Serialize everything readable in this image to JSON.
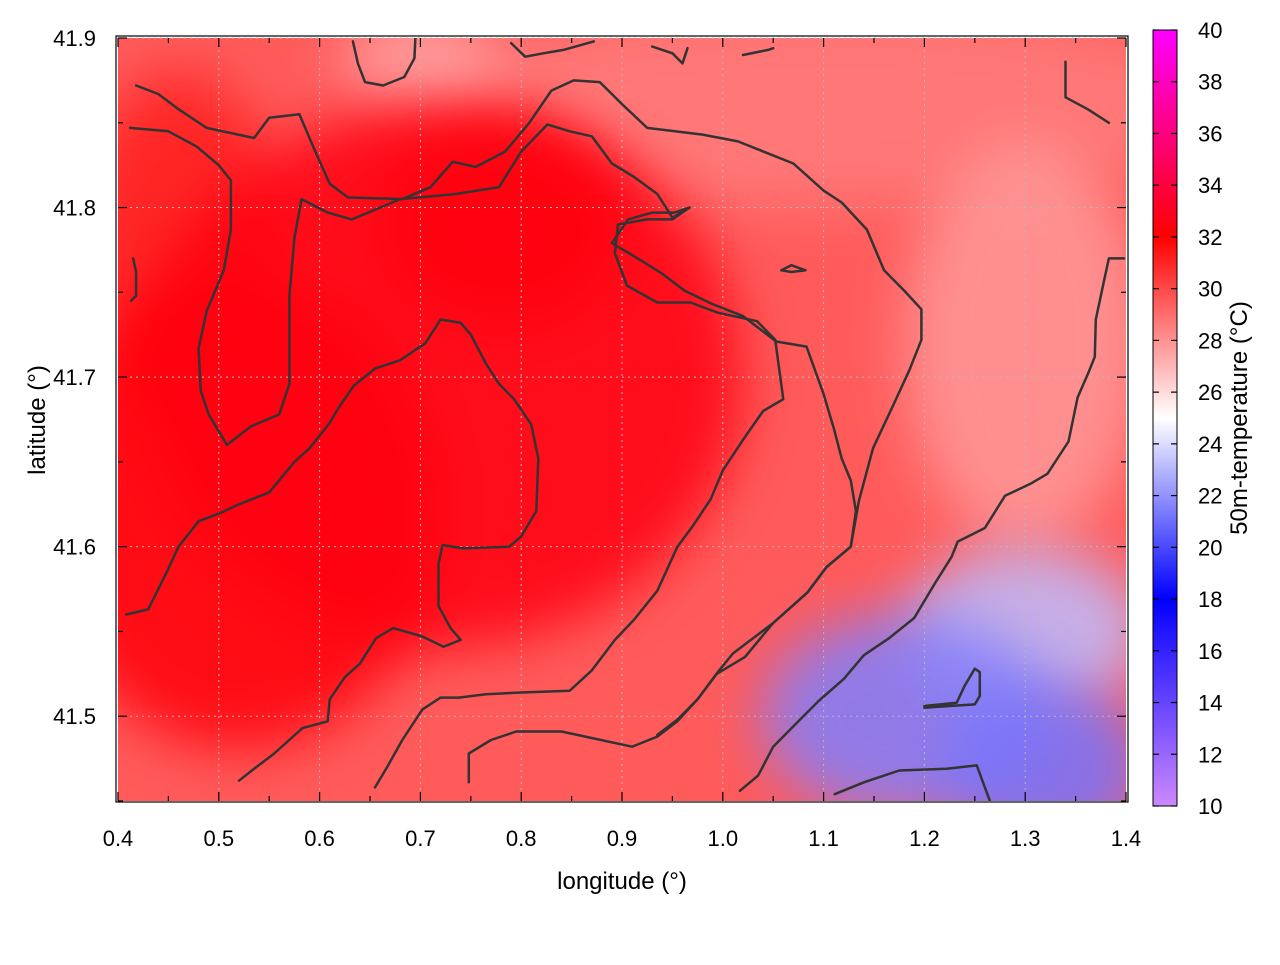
{
  "chart_data": {
    "type": "heatmap",
    "title": "",
    "xlabel": "longitude (°)",
    "ylabel": "latitude (°)",
    "colorbar_label": "50m-temperature (°C)",
    "xlim": [
      0.4,
      1.4
    ],
    "ylim": [
      41.45,
      41.9
    ],
    "x_ticks": [
      "0.4",
      "0.5",
      "0.6",
      "0.7",
      "0.8",
      "0.9",
      "1.0",
      "1.1",
      "1.2",
      "1.3",
      "1.4"
    ],
    "y_ticks": [
      "41.5",
      "41.6",
      "41.7",
      "41.8",
      "41.9"
    ],
    "colorbar_range": [
      10,
      40
    ],
    "colorbar_ticks": [
      "10",
      "12",
      "14",
      "16",
      "18",
      "20",
      "22",
      "24",
      "26",
      "28",
      "30",
      "32",
      "34",
      "36",
      "38",
      "40"
    ],
    "colormap": [
      {
        "value": 10,
        "color": "#cc88ff"
      },
      {
        "value": 18,
        "color": "#0000ff"
      },
      {
        "value": 25,
        "color": "#ffffff"
      },
      {
        "value": 32,
        "color": "#ff0000"
      },
      {
        "value": 40,
        "color": "#ff00ff"
      }
    ],
    "grid": true,
    "contour_color": "#333333",
    "contours": [
      [
        [
          0.418,
          41.872
        ],
        [
          0.44,
          41.867
        ],
        [
          0.46,
          41.858
        ],
        [
          0.488,
          41.847
        ],
        [
          0.535,
          41.841
        ],
        [
          0.55,
          41.853
        ],
        [
          0.58,
          41.855
        ],
        [
          0.595,
          41.834
        ],
        [
          0.61,
          41.814
        ],
        [
          0.628,
          41.806
        ],
        [
          0.682,
          41.805
        ],
        [
          0.71,
          41.812
        ],
        [
          0.732,
          41.827
        ],
        [
          0.755,
          41.824
        ],
        [
          0.784,
          41.833
        ],
        [
          0.808,
          41.85
        ],
        [
          0.83,
          41.869
        ],
        [
          0.852,
          41.875
        ],
        [
          0.878,
          41.874
        ],
        [
          0.9,
          41.861
        ],
        [
          0.925,
          41.847
        ],
        [
          0.98,
          41.843
        ],
        [
          1.015,
          41.839
        ],
        [
          1.07,
          41.826
        ],
        [
          1.1,
          41.81
        ],
        [
          1.118,
          41.803
        ],
        [
          1.143,
          41.787
        ],
        [
          1.16,
          41.763
        ],
        [
          1.18,
          41.751
        ],
        [
          1.197,
          41.74
        ],
        [
          1.197,
          41.722
        ],
        [
          1.185,
          41.704
        ],
        [
          1.168,
          41.682
        ],
        [
          1.149,
          41.658
        ],
        [
          1.135,
          41.627
        ],
        [
          1.127,
          41.6
        ],
        [
          1.103,
          41.588
        ],
        [
          1.084,
          41.573
        ],
        [
          1.05,
          41.555
        ],
        [
          1.01,
          41.537
        ],
        [
          0.995,
          41.526
        ],
        [
          0.975,
          41.51
        ],
        [
          0.955,
          41.497
        ],
        [
          0.935,
          41.488
        ],
        [
          0.91,
          41.482
        ],
        [
          0.84,
          41.491
        ],
        [
          0.795,
          41.491
        ],
        [
          0.77,
          41.486
        ],
        [
          0.748,
          41.478
        ],
        [
          0.748,
          41.461
        ]
      ],
      [
        [
          0.412,
          41.847
        ],
        [
          0.45,
          41.845
        ],
        [
          0.478,
          41.836
        ],
        [
          0.5,
          41.825
        ],
        [
          0.512,
          41.816
        ],
        [
          0.512,
          41.787
        ],
        [
          0.505,
          41.763
        ],
        [
          0.488,
          41.739
        ],
        [
          0.48,
          41.717
        ],
        [
          0.482,
          41.692
        ],
        [
          0.49,
          41.678
        ],
        [
          0.508,
          41.66
        ],
        [
          0.532,
          41.671
        ],
        [
          0.56,
          41.678
        ],
        [
          0.57,
          41.696
        ],
        [
          0.57,
          41.748
        ],
        [
          0.575,
          41.782
        ],
        [
          0.582,
          41.805
        ],
        [
          0.608,
          41.797
        ],
        [
          0.632,
          41.793
        ],
        [
          0.68,
          41.805
        ],
        [
          0.735,
          41.808
        ],
        [
          0.778,
          41.812
        ],
        [
          0.8,
          41.833
        ],
        [
          0.826,
          41.849
        ],
        [
          0.848,
          41.845
        ],
        [
          0.87,
          41.842
        ],
        [
          0.89,
          41.826
        ],
        [
          0.912,
          41.818
        ],
        [
          0.935,
          41.808
        ],
        [
          0.95,
          41.794
        ],
        [
          0.967,
          41.8
        ],
        [
          0.952,
          41.797
        ],
        [
          0.93,
          41.797
        ],
        [
          0.906,
          41.793
        ],
        [
          0.89,
          41.779
        ],
        [
          0.91,
          41.772
        ],
        [
          0.94,
          41.761
        ],
        [
          0.962,
          41.751
        ],
        [
          0.99,
          41.743
        ],
        [
          1.02,
          41.736
        ],
        [
          1.053,
          41.721
        ],
        [
          1.083,
          41.718
        ],
        [
          1.1,
          41.69
        ],
        [
          1.11,
          41.67
        ],
        [
          1.118,
          41.652
        ],
        [
          1.127,
          41.639
        ],
        [
          1.132,
          41.621
        ],
        [
          1.127,
          41.6
        ],
        [
          1.103,
          41.588
        ],
        [
          1.084,
          41.573
        ],
        [
          1.05,
          41.555
        ],
        [
          1.022,
          41.535
        ],
        [
          0.994,
          41.525
        ],
        [
          0.975,
          41.51
        ],
        [
          0.955,
          41.498
        ],
        [
          0.935,
          41.489
        ]
      ],
      [
        [
          0.408,
          41.56
        ],
        [
          0.43,
          41.563
        ],
        [
          0.45,
          41.587
        ],
        [
          0.46,
          41.6
        ],
        [
          0.48,
          41.615
        ],
        [
          0.502,
          41.62
        ],
        [
          0.52,
          41.625
        ],
        [
          0.55,
          41.632
        ],
        [
          0.575,
          41.65
        ],
        [
          0.59,
          41.658
        ],
        [
          0.61,
          41.673
        ],
        [
          0.62,
          41.683
        ],
        [
          0.634,
          41.695
        ],
        [
          0.655,
          41.705
        ],
        [
          0.68,
          41.71
        ],
        [
          0.705,
          41.72
        ],
        [
          0.72,
          41.734
        ],
        [
          0.74,
          41.732
        ],
        [
          0.75,
          41.725
        ],
        [
          0.765,
          41.708
        ],
        [
          0.778,
          41.696
        ],
        [
          0.793,
          41.687
        ],
        [
          0.81,
          41.672
        ],
        [
          0.817,
          41.652
        ],
        [
          0.815,
          41.621
        ],
        [
          0.8,
          41.606
        ],
        [
          0.788,
          41.6
        ],
        [
          0.742,
          41.599
        ],
        [
          0.722,
          41.601
        ],
        [
          0.718,
          41.59
        ],
        [
          0.718,
          41.565
        ],
        [
          0.73,
          41.552
        ],
        [
          0.74,
          41.545
        ],
        [
          0.723,
          41.541
        ],
        [
          0.702,
          41.547
        ],
        [
          0.673,
          41.552
        ],
        [
          0.656,
          41.546
        ],
        [
          0.64,
          41.531
        ],
        [
          0.625,
          41.523
        ],
        [
          0.61,
          41.51
        ],
        [
          0.608,
          41.497
        ],
        [
          0.583,
          41.493
        ],
        [
          0.555,
          41.478
        ],
        [
          0.535,
          41.469
        ],
        [
          0.52,
          41.462
        ]
      ],
      [
        [
          0.655,
          41.458
        ],
        [
          0.667,
          41.47
        ],
        [
          0.682,
          41.486
        ],
        [
          0.702,
          41.504
        ],
        [
          0.72,
          41.511
        ],
        [
          0.738,
          41.511
        ],
        [
          0.765,
          41.513
        ],
        [
          0.8,
          41.514
        ],
        [
          0.848,
          41.515
        ],
        [
          0.87,
          41.527
        ],
        [
          0.893,
          41.545
        ],
        [
          0.912,
          41.557
        ],
        [
          0.935,
          41.574
        ],
        [
          0.955,
          41.6
        ],
        [
          0.97,
          41.612
        ],
        [
          0.988,
          41.628
        ],
        [
          1.0,
          41.645
        ],
        [
          1.02,
          41.663
        ],
        [
          1.04,
          41.68
        ],
        [
          1.06,
          41.687
        ],
        [
          1.052,
          41.722
        ],
        [
          1.034,
          41.733
        ],
        [
          0.995,
          41.738
        ],
        [
          0.968,
          41.744
        ],
        [
          0.935,
          41.744
        ],
        [
          0.905,
          41.754
        ],
        [
          0.893,
          41.773
        ],
        [
          0.896,
          41.79
        ],
        [
          0.925,
          41.793
        ],
        [
          0.95,
          41.793
        ],
        [
          0.967,
          41.8
        ]
      ],
      [
        [
          1.017,
          41.456
        ],
        [
          1.035,
          41.465
        ],
        [
          1.05,
          41.482
        ],
        [
          1.075,
          41.497
        ],
        [
          1.095,
          41.509
        ],
        [
          1.12,
          41.522
        ],
        [
          1.14,
          41.536
        ],
        [
          1.165,
          41.546
        ],
        [
          1.19,
          41.558
        ],
        [
          1.21,
          41.578
        ],
        [
          1.227,
          41.594
        ],
        [
          1.233,
          41.603
        ],
        [
          1.26,
          41.611
        ],
        [
          1.28,
          41.63
        ],
        [
          1.305,
          41.637
        ],
        [
          1.322,
          41.643
        ],
        [
          1.343,
          41.662
        ],
        [
          1.352,
          41.688
        ],
        [
          1.363,
          41.703
        ],
        [
          1.369,
          41.712
        ],
        [
          1.37,
          41.734
        ],
        [
          1.379,
          41.759
        ],
        [
          1.383,
          41.77
        ],
        [
          1.398,
          41.77
        ]
      ],
      [
        [
          1.111,
          41.454
        ],
        [
          1.14,
          41.461
        ],
        [
          1.175,
          41.468
        ],
        [
          1.222,
          41.469
        ],
        [
          1.252,
          41.471
        ],
        [
          1.265,
          41.45
        ]
      ],
      [
        [
          1.2,
          41.505
        ],
        [
          1.225,
          41.506
        ],
        [
          1.25,
          41.507
        ],
        [
          1.255,
          41.512
        ],
        [
          1.255,
          41.526
        ],
        [
          1.25,
          41.528
        ],
        [
          1.24,
          41.518
        ],
        [
          1.232,
          41.508
        ],
        [
          1.2,
          41.506
        ]
      ],
      [
        [
          0.633,
          41.898
        ],
        [
          0.638,
          41.885
        ],
        [
          0.645,
          41.874
        ],
        [
          0.663,
          41.872
        ],
        [
          0.684,
          41.877
        ],
        [
          0.694,
          41.888
        ],
        [
          0.695,
          41.9
        ]
      ],
      [
        [
          0.79,
          41.897
        ],
        [
          0.804,
          41.889
        ],
        [
          0.822,
          41.891
        ],
        [
          0.842,
          41.893
        ],
        [
          0.872,
          41.898
        ]
      ],
      [
        [
          0.93,
          41.895
        ],
        [
          0.95,
          41.891
        ],
        [
          0.96,
          41.885
        ],
        [
          0.965,
          41.894
        ]
      ],
      [
        [
          1.02,
          41.89
        ],
        [
          1.045,
          41.893
        ],
        [
          1.05,
          41.894
        ]
      ],
      [
        [
          1.34,
          41.886
        ],
        [
          1.34,
          41.865
        ],
        [
          1.362,
          41.858
        ],
        [
          1.383,
          41.85
        ]
      ],
      [
        [
          1.058,
          41.763
        ],
        [
          1.068,
          41.766
        ],
        [
          1.082,
          41.763
        ],
        [
          1.068,
          41.762
        ],
        [
          1.058,
          41.763
        ]
      ],
      [
        [
          0.415,
          41.77
        ],
        [
          0.418,
          41.762
        ],
        [
          0.418,
          41.748
        ],
        [
          0.413,
          41.745
        ]
      ]
    ],
    "temperature_blobs": [
      {
        "x": 0.72,
        "y": 41.7,
        "rx": 0.3,
        "ry": 0.16,
        "value": 32.5
      },
      {
        "x": 0.52,
        "y": 41.62,
        "rx": 0.2,
        "ry": 0.14,
        "value": 32.3
      },
      {
        "x": 0.78,
        "y": 41.79,
        "rx": 0.12,
        "ry": 0.06,
        "value": 32.2
      },
      {
        "x": 0.46,
        "y": 41.78,
        "rx": 0.1,
        "ry": 0.1,
        "value": 31.2
      },
      {
        "x": 0.7,
        "y": 41.885,
        "rx": 0.08,
        "ry": 0.03,
        "value": 27.5
      },
      {
        "x": 1.1,
        "y": 41.86,
        "rx": 0.4,
        "ry": 0.06,
        "value": 28.6
      },
      {
        "x": 1.3,
        "y": 41.72,
        "rx": 0.12,
        "ry": 0.12,
        "value": 27.8
      },
      {
        "x": 1.18,
        "y": 41.5,
        "rx": 0.14,
        "ry": 0.06,
        "value": 21.5
      },
      {
        "x": 1.32,
        "y": 41.47,
        "rx": 0.1,
        "ry": 0.05,
        "value": 21.2
      },
      {
        "x": 1.3,
        "y": 41.55,
        "rx": 0.12,
        "ry": 0.05,
        "value": 23.2
      }
    ]
  }
}
